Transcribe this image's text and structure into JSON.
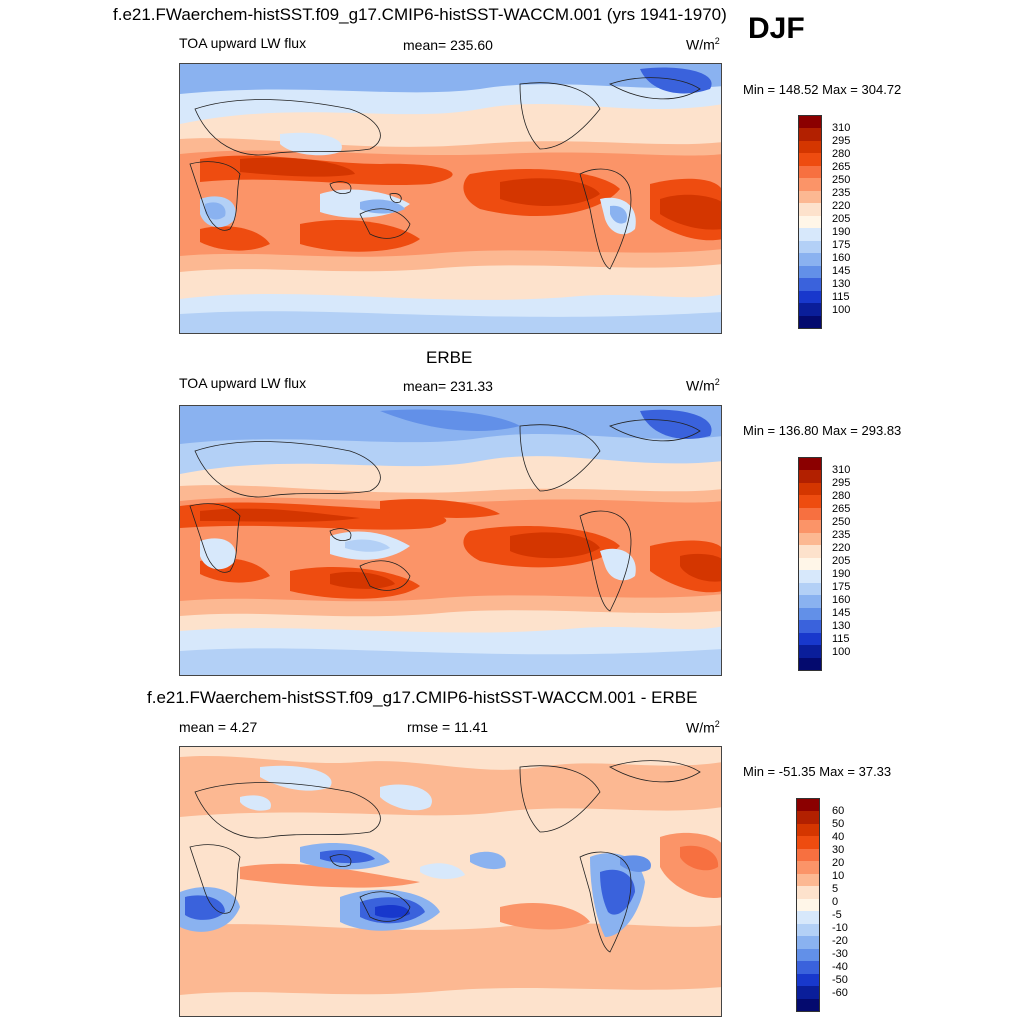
{
  "season": "DJF",
  "panels": [
    {
      "title": "f.e21.FWaerchem-histSST.f09_g17.CMIP6-histSST-WACCM.001 (yrs 1941-1970)",
      "left_label": "TOA upward LW flux",
      "center_label": "mean= 235.60",
      "unit": "W/m",
      "unit_sup": "2",
      "minmax": "Min = 148.52 Max = 304.72",
      "colorbar_labels": [
        "310",
        "295",
        "280",
        "265",
        "250",
        "235",
        "220",
        "205",
        "190",
        "175",
        "160",
        "145",
        "130",
        "115",
        "100"
      ],
      "colorbar_colors": [
        "#8b0000",
        "#b22000",
        "#d43600",
        "#ee4c10",
        "#f77040",
        "#fb9468",
        "#fcb892",
        "#fde2cc",
        "#fff6e8",
        "#d7e8fb",
        "#b3d0f6",
        "#8ab2f0",
        "#6290e8",
        "#3a62dc",
        "#1838cc",
        "#0a1e9a",
        "#040a6e"
      ]
    },
    {
      "title": "ERBE",
      "left_label": "TOA upward LW flux",
      "center_label": "mean= 231.33",
      "unit": "W/m",
      "unit_sup": "2",
      "minmax": "Min = 136.80 Max = 293.83",
      "colorbar_labels": [
        "310",
        "295",
        "280",
        "265",
        "250",
        "235",
        "220",
        "205",
        "190",
        "175",
        "160",
        "145",
        "130",
        "115",
        "100"
      ],
      "colorbar_colors": [
        "#8b0000",
        "#b22000",
        "#d43600",
        "#ee4c10",
        "#f77040",
        "#fb9468",
        "#fcb892",
        "#fde2cc",
        "#fff6e8",
        "#d7e8fb",
        "#b3d0f6",
        "#8ab2f0",
        "#6290e8",
        "#3a62dc",
        "#1838cc",
        "#0a1e9a",
        "#040a6e"
      ]
    },
    {
      "title": "f.e21.FWaerchem-histSST.f09_g17.CMIP6-histSST-WACCM.001 - ERBE",
      "left_label": "mean =   4.27",
      "center_label": "rmse =  11.41",
      "unit": "W/m",
      "unit_sup": "2",
      "minmax": "Min = -51.35 Max =  37.33",
      "colorbar_labels": [
        "60",
        "50",
        "40",
        "30",
        "20",
        "10",
        "5",
        "0",
        "-5",
        "-10",
        "-20",
        "-30",
        "-40",
        "-50",
        "-60"
      ],
      "colorbar_colors": [
        "#8b0000",
        "#b22000",
        "#d43600",
        "#ee4c10",
        "#f77040",
        "#fb9468",
        "#fcb892",
        "#fde2cc",
        "#fff6e8",
        "#d7e8fb",
        "#b3d0f6",
        "#8ab2f0",
        "#6290e8",
        "#3a62dc",
        "#1838cc",
        "#0a1e9a",
        "#040a6e"
      ]
    }
  ]
}
